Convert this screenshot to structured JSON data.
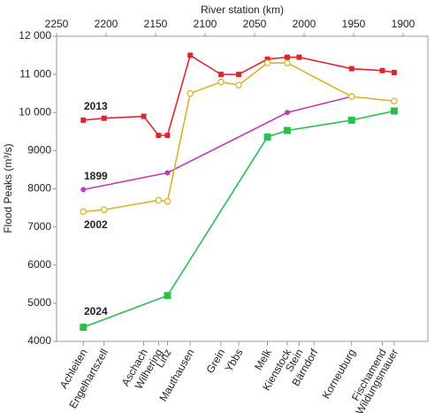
{
  "chart_data": {
    "type": "line",
    "x_label": "River station (km)",
    "y_label": "Flood Peaks (m³/s)",
    "xlim": [
      2250,
      1875
    ],
    "xticks": [
      2250,
      2200,
      2150,
      2100,
      2050,
      2000,
      1950,
      1900
    ],
    "ylim": [
      4000,
      12000
    ],
    "yticks": [
      4000,
      5000,
      6000,
      7000,
      8000,
      9000,
      {
        "value": 10000,
        "label": "10 000"
      },
      {
        "value": 11000,
        "label": "11 000"
      },
      {
        "value": 12000,
        "label": "12 000"
      }
    ],
    "grid": false,
    "stations": {
      "names": [
        "Achleiten",
        "Engelhartszell",
        "Aschach",
        "Wilhering",
        "Linz",
        "Mauthausen",
        "Grein",
        "Ybbs",
        "Melk",
        "Kienstock",
        "Stein",
        "Bärndorf",
        "Korneuburg",
        "Fischamend",
        "Wildungsmauer"
      ],
      "x": [
        2223,
        2202,
        2162,
        2147,
        2138,
        2115,
        2084,
        2066,
        2037,
        2017,
        2005,
        1990,
        1952,
        1921,
        1909
      ],
      "colors": [
        "#000000",
        "#666666",
        "#666666",
        "#000000",
        "#666666",
        "#000000",
        "#666666",
        "#666666",
        "#666666",
        "#000000",
        "#666666",
        "#000000",
        "#000000",
        "#666666",
        "#000000"
      ]
    },
    "series": [
      {
        "name": "2013",
        "color": "#e0242a",
        "marker": "square",
        "x": [
          2223,
          2202,
          2162,
          2147,
          2138,
          2115,
          2084,
          2066,
          2037,
          2017,
          2005,
          1952,
          1921,
          1909
        ],
        "values": [
          9800,
          9850,
          9900,
          9400,
          9400,
          11500,
          11000,
          11000,
          11400,
          11450,
          11450,
          11150,
          11100,
          11050
        ]
      },
      {
        "name": "1899",
        "color": "#c03bc0",
        "marker": "dot",
        "x": [
          2223,
          2138,
          2017,
          1952
        ],
        "values": [
          7980,
          8420,
          10000,
          10420
        ]
      },
      {
        "name": "2002",
        "color": "#d9b42a",
        "marker": "hollow-circle",
        "x": [
          2223,
          2202,
          2147,
          2138,
          2115,
          2084,
          2066,
          2037,
          2017,
          1952,
          1909
        ],
        "values": [
          7400,
          7450,
          7700,
          7670,
          10500,
          10800,
          10720,
          11300,
          11300,
          10420,
          10300
        ]
      },
      {
        "name": "2024",
        "color": "#27c04a",
        "marker": "big-square",
        "x": [
          2223,
          2138,
          2037,
          2017,
          1952,
          1909
        ],
        "values": [
          4370,
          5200,
          9360,
          9530,
          9800,
          10040
        ]
      }
    ]
  }
}
